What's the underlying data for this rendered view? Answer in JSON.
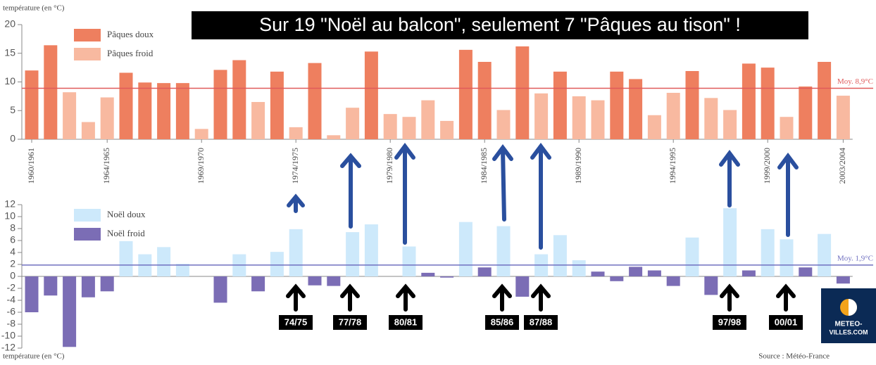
{
  "header": {
    "title": "Sur 19 \"Noël au balcon\", seulement 7 \"Pâques au tison\" !"
  },
  "annotations": [
    "74/75",
    "77/78",
    "80/81",
    "85/86",
    "87/88",
    "97/98",
    "00/01"
  ],
  "source": "Source : Météo-France",
  "logo": [
    "METEO-",
    "VILLES.COM"
  ],
  "chart_data": [
    {
      "type": "bar",
      "ylabel": "température (en °C)",
      "categories": [
        "1960/1961",
        null,
        null,
        null,
        "1964/1965",
        null,
        null,
        null,
        null,
        "1969/1970",
        null,
        null,
        null,
        null,
        "1974/1975",
        null,
        null,
        null,
        null,
        "1979/1980",
        null,
        null,
        null,
        null,
        "1984/1985",
        null,
        null,
        null,
        null,
        "1989/1990",
        null,
        null,
        null,
        null,
        "1994/1995",
        null,
        null,
        null,
        null,
        "1999/2000",
        null,
        null,
        null,
        "2003/2004"
      ],
      "series": [
        {
          "name": "Pâques doux",
          "color": "#ee7f5f",
          "values": [
            12,
            16.4,
            null,
            null,
            null,
            11.6,
            9.9,
            9.8,
            9.8,
            null,
            12.1,
            13.8,
            null,
            11.8,
            null,
            13.3,
            null,
            null,
            15.3,
            null,
            null,
            null,
            null,
            15.6,
            13.5,
            null,
            16.2,
            null,
            11.8,
            null,
            null,
            11.8,
            10.5,
            null,
            null,
            11.9,
            null,
            null,
            13.2,
            12.5,
            null,
            9.2,
            13.5,
            null
          ]
        },
        {
          "name": "Pâques froid",
          "color": "#f8b9a0",
          "values": [
            null,
            null,
            8.2,
            3,
            7.3,
            null,
            null,
            null,
            null,
            1.8,
            null,
            null,
            6.5,
            null,
            2.1,
            null,
            0.7,
            5.5,
            null,
            4.4,
            3.9,
            6.8,
            3.2,
            null,
            null,
            5.1,
            null,
            8,
            null,
            7.5,
            6.8,
            null,
            null,
            4.2,
            8.1,
            null,
            7.2,
            5.1,
            null,
            null,
            3.9,
            null,
            null,
            7.6
          ]
        }
      ],
      "mean": {
        "value": 8.9,
        "label": "Moy. 8,9°C",
        "color": "#e05a5a"
      },
      "ylim": [
        0,
        20
      ],
      "yticks": [
        0,
        5,
        10,
        15,
        20
      ]
    },
    {
      "type": "bar",
      "ylabel": "température (en °C)",
      "series": [
        {
          "name": "Noël doux",
          "color": "#cde9fb",
          "values": [
            null,
            null,
            null,
            null,
            null,
            5.9,
            3.7,
            4.9,
            2.1,
            null,
            null,
            3.7,
            null,
            4.1,
            7.9,
            null,
            null,
            7.4,
            8.7,
            null,
            5,
            null,
            null,
            9.1,
            null,
            8.4,
            null,
            3.7,
            6.9,
            2.7,
            null,
            null,
            null,
            null,
            null,
            6.5,
            null,
            11.4,
            null,
            7.9,
            6.2,
            null,
            7.1,
            null
          ]
        },
        {
          "name": "Noël froid",
          "color": "#7b6db5",
          "values": [
            -6,
            -3.2,
            -11.8,
            -3.5,
            -2.5,
            null,
            null,
            null,
            null,
            null,
            -4.4,
            null,
            -2.5,
            null,
            null,
            -1.5,
            -1.6,
            null,
            null,
            null,
            null,
            0.6,
            -0.2,
            null,
            1.5,
            null,
            -3.4,
            null,
            null,
            null,
            0.8,
            -0.8,
            1.6,
            1,
            -1.6,
            null,
            -3.1,
            null,
            1,
            null,
            null,
            1.5,
            null,
            -1.2
          ]
        }
      ],
      "mean": {
        "value": 1.9,
        "label": "Moy. 1,9°C",
        "color": "#7070c0"
      },
      "ylim": [
        -12,
        12
      ],
      "yticks": [
        -12,
        -10,
        -8,
        -6,
        -4,
        -2,
        0,
        2,
        4,
        6,
        8,
        10,
        12
      ]
    }
  ]
}
